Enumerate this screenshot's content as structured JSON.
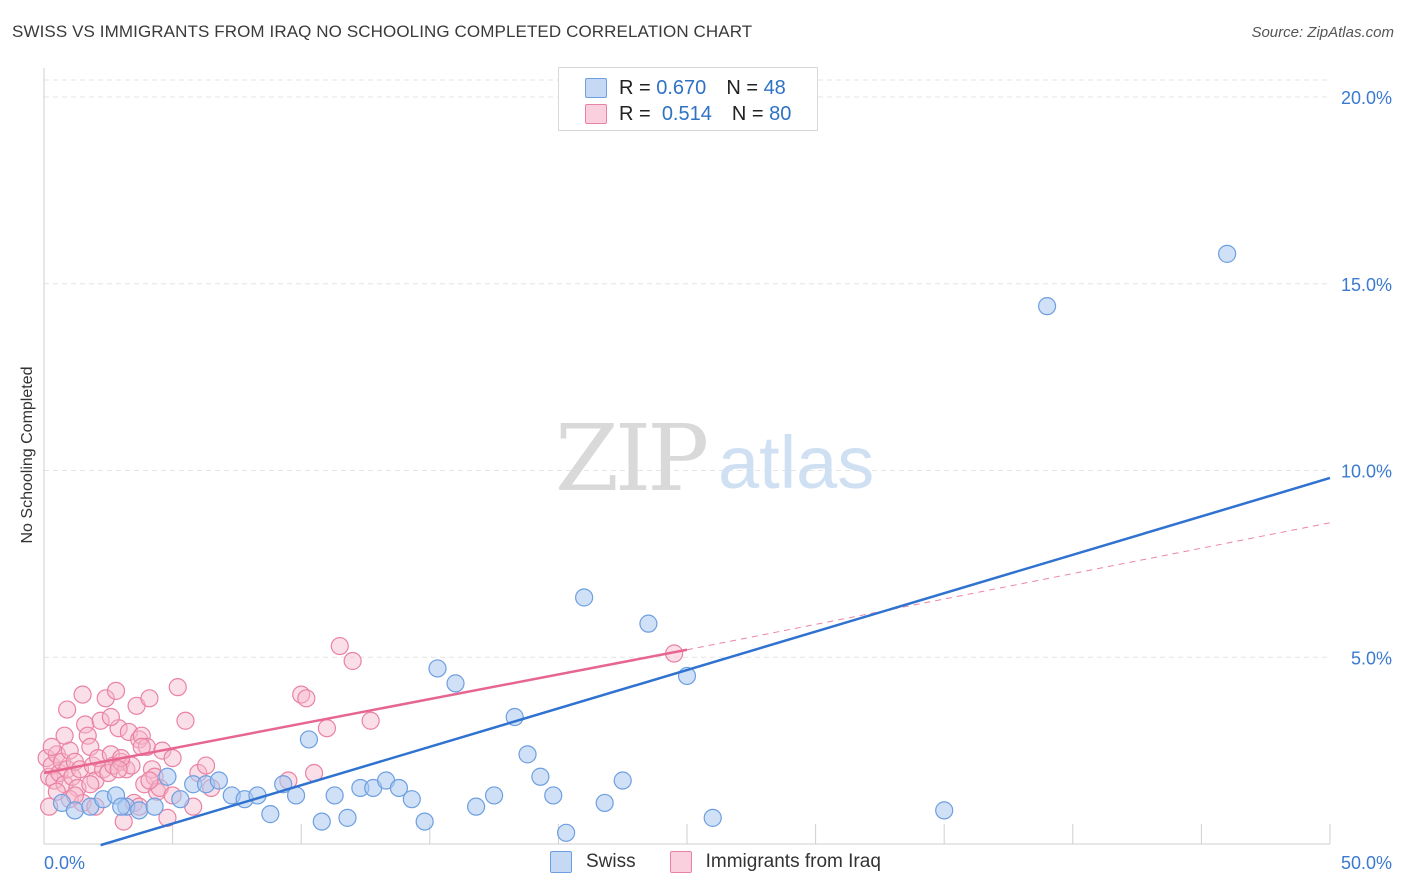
{
  "header": {
    "title": "SWISS VS IMMIGRANTS FROM IRAQ NO SCHOOLING COMPLETED CORRELATION CHART",
    "source": "Source: ZipAtlas.com"
  },
  "watermark": {
    "zip": "ZIP",
    "atlas": "atlas"
  },
  "legend": {
    "rows": [
      {
        "r_label": "R =",
        "r_value": "0.670",
        "n_label": "N =",
        "n_value": "48"
      },
      {
        "r_label": "R =",
        "r_value": "0.514",
        "n_label": "N =",
        "n_value": "80"
      }
    ]
  },
  "bottom_legend": {
    "swiss": "Swiss",
    "iraq": "Immigrants from Iraq"
  },
  "colors": {
    "swiss_fill": "#a9c8f0",
    "swiss_stroke": "#6d9fe0",
    "swiss_line": "#2f72d0",
    "iraq_fill": "#f7b8cc",
    "iraq_stroke": "#ea82a3",
    "iraq_line": "#e66690",
    "grid": "#e4e4e4",
    "tick_text": "#3b7ad0"
  },
  "chart_data": {
    "type": "scatter",
    "title": "SWISS VS IMMIGRANTS FROM IRAQ NO SCHOOLING COMPLETED CORRELATION CHART",
    "xlabel": "",
    "ylabel": "No Schooling Completed",
    "xlim": [
      0,
      50
    ],
    "ylim": [
      0,
      20
    ],
    "x_tick_labels": [
      "0.0%",
      "50.0%"
    ],
    "y_ticks": [
      5,
      10,
      15,
      20
    ],
    "y_tick_labels": [
      "5.0%",
      "10.0%",
      "15.0%",
      "20.0%"
    ],
    "series": [
      {
        "name": "Swiss",
        "R": 0.67,
        "N": 48,
        "trend": {
          "x": [
            2.2,
            50.0
          ],
          "y": [
            -0.03,
            9.8
          ],
          "style": "solid"
        },
        "points": [
          [
            0.7,
            1.1
          ],
          [
            1.2,
            0.9
          ],
          [
            1.8,
            1.0
          ],
          [
            2.3,
            1.2
          ],
          [
            2.8,
            1.3
          ],
          [
            3.2,
            1.0
          ],
          [
            3.7,
            0.9
          ],
          [
            4.3,
            1.0
          ],
          [
            4.8,
            1.8
          ],
          [
            5.3,
            1.2
          ],
          [
            5.8,
            1.6
          ],
          [
            6.3,
            1.6
          ],
          [
            6.8,
            1.7
          ],
          [
            7.3,
            1.3
          ],
          [
            7.8,
            1.2
          ],
          [
            8.3,
            1.3
          ],
          [
            8.8,
            0.8
          ],
          [
            9.3,
            1.6
          ],
          [
            9.8,
            1.3
          ],
          [
            10.3,
            2.8
          ],
          [
            10.8,
            0.6
          ],
          [
            11.3,
            1.3
          ],
          [
            11.8,
            0.7
          ],
          [
            12.3,
            1.5
          ],
          [
            12.8,
            1.5
          ],
          [
            13.3,
            1.7
          ],
          [
            13.8,
            1.5
          ],
          [
            14.3,
            1.2
          ],
          [
            14.8,
            0.6
          ],
          [
            15.3,
            4.7
          ],
          [
            16.0,
            4.3
          ],
          [
            16.8,
            1.0
          ],
          [
            17.5,
            1.3
          ],
          [
            18.3,
            3.4
          ],
          [
            18.8,
            2.4
          ],
          [
            19.3,
            1.8
          ],
          [
            19.8,
            1.3
          ],
          [
            20.3,
            0.3
          ],
          [
            21.0,
            6.6
          ],
          [
            21.8,
            1.1
          ],
          [
            22.5,
            1.7
          ],
          [
            23.5,
            5.9
          ],
          [
            25.0,
            4.5
          ],
          [
            26.0,
            0.7
          ],
          [
            35.0,
            0.9
          ],
          [
            39.0,
            14.4
          ],
          [
            46.0,
            15.8
          ],
          [
            3.0,
            1.0
          ]
        ]
      },
      {
        "name": "Immigrants from Iraq",
        "R": 0.514,
        "N": 80,
        "trend": {
          "x": [
            0.0,
            25.0
          ],
          "y": [
            1.9,
            5.2
          ],
          "style": "solid",
          "extension": {
            "x": [
              25.0,
              50.0
            ],
            "y": [
              5.2,
              8.6
            ],
            "style": "dashed"
          }
        },
        "points": [
          [
            0.1,
            2.3
          ],
          [
            0.2,
            1.8
          ],
          [
            0.3,
            2.1
          ],
          [
            0.4,
            1.7
          ],
          [
            0.5,
            2.4
          ],
          [
            0.6,
            1.9
          ],
          [
            0.7,
            2.2
          ],
          [
            0.8,
            1.6
          ],
          [
            0.9,
            2.0
          ],
          [
            1.0,
            2.5
          ],
          [
            1.1,
            1.8
          ],
          [
            1.2,
            2.2
          ],
          [
            1.3,
            1.5
          ],
          [
            1.4,
            2.0
          ],
          [
            1.5,
            4.0
          ],
          [
            1.6,
            3.2
          ],
          [
            1.7,
            2.9
          ],
          [
            1.8,
            2.6
          ],
          [
            1.9,
            2.1
          ],
          [
            2.0,
            1.7
          ],
          [
            2.1,
            2.3
          ],
          [
            2.2,
            3.3
          ],
          [
            2.3,
            2.0
          ],
          [
            2.4,
            3.9
          ],
          [
            2.5,
            1.9
          ],
          [
            2.6,
            2.4
          ],
          [
            2.7,
            2.1
          ],
          [
            2.8,
            4.1
          ],
          [
            2.9,
            3.1
          ],
          [
            3.0,
            2.2
          ],
          [
            3.1,
            0.6
          ],
          [
            3.2,
            2.0
          ],
          [
            3.3,
            3.0
          ],
          [
            3.4,
            2.1
          ],
          [
            3.5,
            1.1
          ],
          [
            3.6,
            3.7
          ],
          [
            3.7,
            2.8
          ],
          [
            3.8,
            2.9
          ],
          [
            3.9,
            1.6
          ],
          [
            4.0,
            2.6
          ],
          [
            4.1,
            3.9
          ],
          [
            4.2,
            2.0
          ],
          [
            4.3,
            1.8
          ],
          [
            4.4,
            1.4
          ],
          [
            4.6,
            2.5
          ],
          [
            4.8,
            0.7
          ],
          [
            5.0,
            2.3
          ],
          [
            5.2,
            4.2
          ],
          [
            5.5,
            3.3
          ],
          [
            5.8,
            1.0
          ],
          [
            6.0,
            1.9
          ],
          [
            6.3,
            2.1
          ],
          [
            10.0,
            4.0
          ],
          [
            10.5,
            1.9
          ],
          [
            11.0,
            3.1
          ],
          [
            11.5,
            5.3
          ],
          [
            12.0,
            4.9
          ],
          [
            12.7,
            3.3
          ],
          [
            24.5,
            5.1
          ],
          [
            0.5,
            1.4
          ],
          [
            1.0,
            1.2
          ],
          [
            1.5,
            1.1
          ],
          [
            2.0,
            1.0
          ],
          [
            3.7,
            1.0
          ],
          [
            4.5,
            1.5
          ],
          [
            6.5,
            1.5
          ],
          [
            9.5,
            1.7
          ],
          [
            10.2,
            3.9
          ],
          [
            0.3,
            2.6
          ],
          [
            0.8,
            2.9
          ],
          [
            1.2,
            1.3
          ],
          [
            2.6,
            3.4
          ],
          [
            3.0,
            2.3
          ],
          [
            3.8,
            2.6
          ],
          [
            4.1,
            1.7
          ],
          [
            5.0,
            1.3
          ],
          [
            0.2,
            1.0
          ],
          [
            1.8,
            1.6
          ],
          [
            0.9,
            3.6
          ],
          [
            2.9,
            2.0
          ]
        ]
      }
    ]
  }
}
